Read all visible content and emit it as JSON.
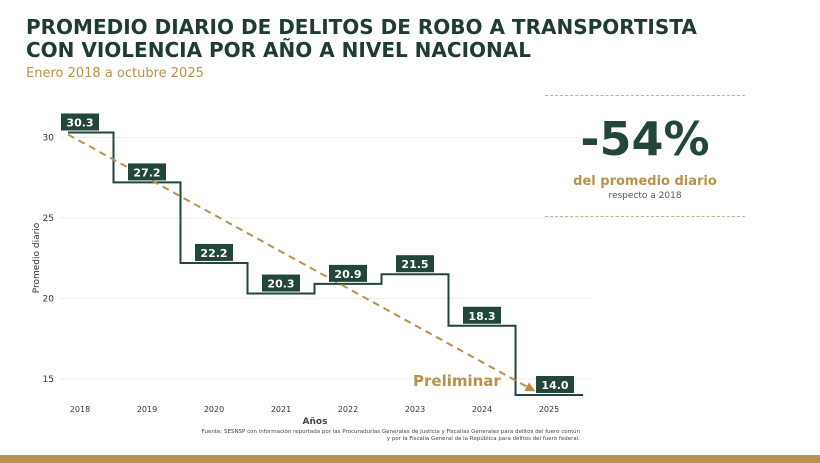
{
  "title_line1": "PROMEDIO DIARIO DE DELITOS DE ROBO A TRANSPORTISTA",
  "title_line2": "CON VIOLENCIA POR AÑO A NIVEL NACIONAL",
  "subtitle": "Enero 2018 a octubre 2025",
  "callout": {
    "value": "-54%",
    "label": "del promedio diario",
    "sublabel": "respecto a 2018"
  },
  "source_line1": "Fuente: SESNSP con información reportada por las Procuradurías Generales de Justicia y Fiscalías Generales para delitos del fuero común",
  "source_line2": "y por la Fiscalía General de la República para delitos del fuero federal.",
  "colors": {
    "step_line": "#22463c",
    "label_bg": "#22463c",
    "trend": "#b8924a",
    "accent": "#b8924a"
  },
  "chart_data": {
    "type": "line",
    "categories": [
      "2018",
      "2019",
      "2020",
      "2021",
      "2022",
      "2023",
      "2024",
      "2025"
    ],
    "values": [
      30.3,
      27.2,
      22.2,
      20.3,
      20.9,
      21.5,
      18.3,
      14.0
    ],
    "data_labels": [
      "30.3",
      "27.2",
      "22.2",
      "20.3",
      "20.9",
      "21.5",
      "18.3",
      "14.0"
    ],
    "xlabel": "Años",
    "ylabel": "Promedio diario",
    "yticks": [
      15,
      20,
      25,
      30
    ],
    "ylim": [
      14,
      31.2
    ],
    "step": true,
    "trend_annotation": "Preliminar"
  }
}
